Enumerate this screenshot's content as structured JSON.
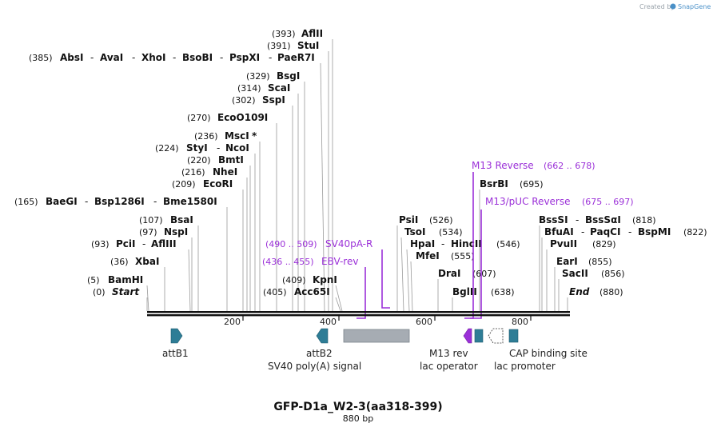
{
  "branding": {
    "prefix": "Created by",
    "app": "SnapGene"
  },
  "map": {
    "title": "GFP-D1a_W2-3(aa318-399)",
    "length_label": "880 bp",
    "ticks": [
      "200",
      "400",
      "600",
      "800"
    ]
  },
  "enzymes": {
    "aflii": {
      "pos": "(393)",
      "name": "AflII"
    },
    "stui": {
      "pos": "(391)",
      "name": "StuI"
    },
    "absi": {
      "pos": "(385)",
      "names": [
        "AbsI",
        "AvaI",
        "XhoI",
        "BsoBI",
        "PspXI",
        "PaeR7I"
      ]
    },
    "bsgi": {
      "pos": "(329)",
      "name": "BsgI"
    },
    "scai": {
      "pos": "(314)",
      "name": "ScaI"
    },
    "sspi": {
      "pos": "(302)",
      "name": "SspI"
    },
    "ecoo": {
      "pos": "(270)",
      "name": "EcoO109I"
    },
    "msci": {
      "pos": "(236)",
      "name": "MscI",
      "mark": "*"
    },
    "styi": {
      "pos": "(224)",
      "names": [
        "StyI",
        "NcoI"
      ]
    },
    "bmti": {
      "pos": "(220)",
      "name": "BmtI"
    },
    "nhei": {
      "pos": "(216)",
      "name": "NheI"
    },
    "ecori": {
      "pos": "(209)",
      "name": "EcoRI"
    },
    "baegi": {
      "pos": "(165)",
      "names": [
        "BaeGI",
        "Bsp1286I",
        "Bme1580I"
      ]
    },
    "bsai": {
      "pos": "(107)",
      "name": "BsaI"
    },
    "nspi": {
      "pos": "(97)",
      "name": "NspI"
    },
    "pcii": {
      "pos": "(93)",
      "names": [
        "PciI",
        "AflIII"
      ]
    },
    "xbai": {
      "pos": "(36)",
      "name": "XbaI"
    },
    "bamhi": {
      "pos": "(5)",
      "name": "BamHI"
    },
    "start": {
      "pos": "(0)",
      "name": "Start"
    },
    "kpni": {
      "pos": "(409)",
      "name": "KpnI"
    },
    "acc65i": {
      "pos": "(405)",
      "name": "Acc65I"
    },
    "psii": {
      "pos": "(526)",
      "name": "PsiI"
    },
    "tsoi": {
      "pos": "(534)",
      "name": "TsoI"
    },
    "hpai": {
      "pos": "(546)",
      "names": [
        "HpaI",
        "HincII"
      ]
    },
    "mfei": {
      "pos": "(555)",
      "name": "MfeI"
    },
    "drai": {
      "pos": "(607)",
      "name": "DraI"
    },
    "bglii": {
      "pos": "(638)",
      "name": "BglII"
    },
    "bsrbi": {
      "pos": "(695)",
      "name": "BsrBI"
    },
    "bsssi": {
      "pos": "(818)",
      "names": [
        "BssSI",
        "BssSαI"
      ]
    },
    "bfuai": {
      "pos": "(822)",
      "names": [
        "BfuAI",
        "PaqCI",
        "BspMI"
      ]
    },
    "pvuii": {
      "pos": "(829)",
      "name": "PvuII"
    },
    "eari": {
      "pos": "(855)",
      "name": "EarI"
    },
    "sacii": {
      "pos": "(856)",
      "name": "SacII"
    },
    "end": {
      "pos": "(880)",
      "name": "End"
    }
  },
  "primers": {
    "m13rev": {
      "name": "M13 Reverse",
      "range": "(662 .. 678)"
    },
    "m13puc": {
      "name": "M13/pUC Reverse",
      "range": "(675 .. 697)"
    },
    "sv40pa_r": {
      "name": "SV40pA-R",
      "range": "(490 .. 509)"
    },
    "ebv_rev": {
      "name": "EBV-rev",
      "range": "(436 .. 455)"
    }
  },
  "features": {
    "attb1": "attB1",
    "attb2": "attB2",
    "sv40": "SV40 poly(A) signal",
    "m13rev": "M13 rev",
    "lacop": "lac operator",
    "lacprom": "lac promoter",
    "cap": "CAP binding site"
  },
  "colors": {
    "backbone": "#111111",
    "feature_teal": "#2e7d96",
    "polyA_gray": "#a6acb3",
    "primer_purple": "#9b30d8",
    "promoter_white": "#ffffff"
  }
}
